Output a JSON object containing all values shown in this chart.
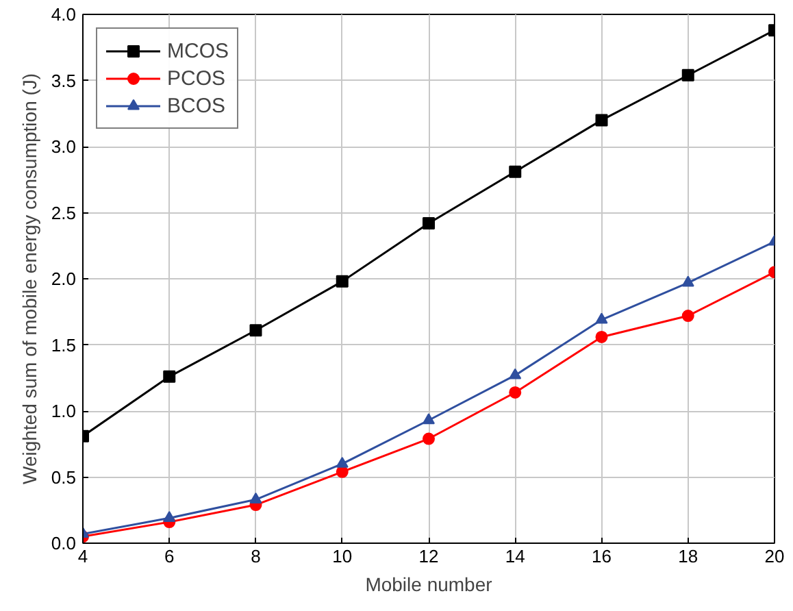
{
  "chart_data": {
    "type": "line",
    "xlabel": "Mobile number",
    "ylabel": "Weighted sum of mobile energy consumption (J)",
    "x": [
      4,
      6,
      8,
      10,
      12,
      14,
      16,
      18,
      20
    ],
    "series": [
      {
        "name": "MCOS",
        "color": "#000000",
        "marker": "square",
        "values": [
          0.81,
          1.26,
          1.61,
          1.98,
          2.42,
          2.81,
          3.2,
          3.54,
          3.88
        ]
      },
      {
        "name": "PCOS",
        "color": "#ff0000",
        "marker": "circle",
        "values": [
          0.05,
          0.16,
          0.29,
          0.54,
          0.79,
          1.14,
          1.56,
          1.72,
          2.05
        ]
      },
      {
        "name": "BCOS",
        "color": "#2f4f9f",
        "marker": "triangle",
        "values": [
          0.07,
          0.19,
          0.33,
          0.6,
          0.93,
          1.27,
          1.69,
          1.97,
          2.28
        ]
      }
    ],
    "xlim": [
      4,
      20
    ],
    "xticks": [
      4,
      6,
      8,
      10,
      12,
      14,
      16,
      18,
      20
    ],
    "ylim": [
      0,
      4
    ],
    "yticks": [
      {
        "value": 0,
        "label": "0.0"
      },
      {
        "value": 0.5,
        "label": "0.5"
      },
      {
        "value": 1,
        "label": "1.0"
      },
      {
        "value": 1.5,
        "label": "1.5"
      },
      {
        "value": 2,
        "label": "2.0"
      },
      {
        "value": 2.5,
        "label": "2.5"
      },
      {
        "value": 3,
        "label": "3.0"
      },
      {
        "value": 3.5,
        "label": "3.5"
      },
      {
        "value": 4,
        "label": "4.0"
      }
    ],
    "grid": true,
    "legend": "top left",
    "line_style": "solid"
  }
}
